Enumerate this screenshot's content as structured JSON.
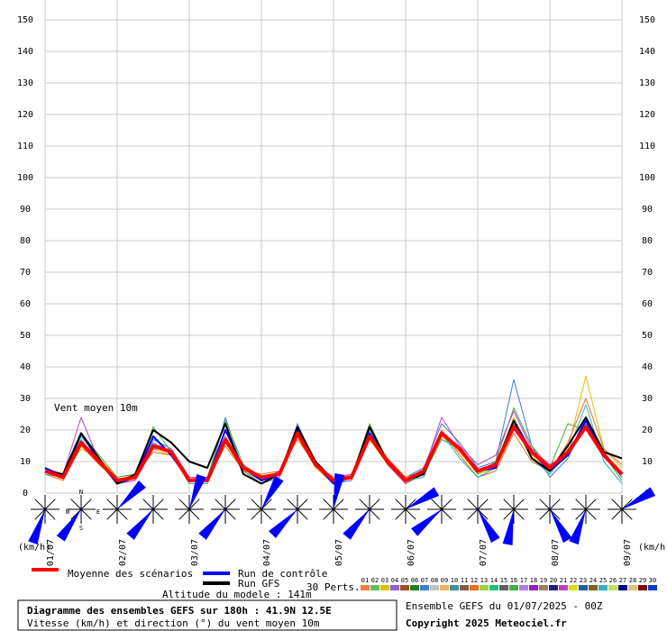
{
  "chart_data": {
    "type": "line",
    "title": "Diagramme des ensembles GEFS sur 180h : 41.9N 12.5E",
    "subtitle": "Vitesse (km/h) et direction (°) du vent moyen 10m",
    "annotation": "Vent moyen 10m",
    "y_unit": "(km/h)",
    "altitude": "Altitude du modele : 141m",
    "run_info": "Ensemble GEFS du 01/07/2025 - 00Z",
    "copyright": "Copyright 2025 Meteociel.fr",
    "perts_label": "30 Perts.",
    "compass": {
      "n": "N",
      "w": "W",
      "e": "E",
      "s": "S"
    },
    "categories": [
      "01/07",
      null,
      null,
      null,
      "02/07",
      null,
      null,
      null,
      "03/07",
      null,
      null,
      null,
      "04/07",
      null,
      null,
      null,
      "05/07",
      null,
      null,
      null,
      "06/07",
      null,
      null,
      null,
      "07/07",
      null,
      null,
      null,
      "08/07",
      null,
      null,
      null,
      "09/07"
    ],
    "ylim": [
      0,
      150
    ],
    "yticks": [
      0,
      10,
      20,
      30,
      40,
      50,
      60,
      70,
      80,
      90,
      100,
      110,
      120,
      130,
      140,
      150
    ],
    "grid": true,
    "series": [
      {
        "name": "Moyenne des scénarios",
        "color": "#ff0000",
        "values": [
          7,
          5,
          16,
          10,
          4,
          5,
          15,
          13,
          4,
          4,
          17,
          8,
          5,
          6,
          19,
          9,
          4,
          5,
          18,
          10,
          4,
          7,
          19,
          14,
          7,
          9,
          21,
          13,
          8,
          13,
          21,
          12,
          6
        ]
      },
      {
        "name": "Run de contrôle",
        "color": "#0000ff",
        "values": [
          8,
          5,
          19,
          10,
          3,
          5,
          18,
          12,
          4,
          4,
          20,
          8,
          4,
          6,
          20,
          9,
          3,
          5,
          19,
          10,
          4,
          6,
          19,
          14,
          7,
          8,
          23,
          13,
          7,
          12,
          23,
          12,
          6
        ]
      },
      {
        "name": "Run GFS",
        "color": "#000000",
        "values": [
          7,
          6,
          19,
          11,
          3,
          6,
          20,
          16,
          10,
          8,
          22,
          6,
          3,
          6,
          21,
          10,
          4,
          5,
          21,
          10,
          4,
          6,
          19,
          14,
          7,
          9,
          23,
          11,
          7,
          15,
          24,
          13,
          11
        ]
      }
    ],
    "perturbations": [
      {
        "member": 2,
        "values": [
          7,
          6,
          14,
          11,
          5,
          6,
          14,
          12,
          5,
          5,
          16,
          7,
          4,
          6,
          18,
          8,
          3,
          5,
          17,
          9,
          3,
          6,
          18,
          13,
          6,
          8,
          24,
          12,
          6,
          14,
          37,
          14,
          8
        ]
      },
      {
        "member": 6,
        "values": [
          8,
          5,
          18,
          11,
          3,
          4,
          17,
          14,
          3,
          3,
          24,
          7,
          3,
          5,
          22,
          9,
          3,
          4,
          20,
          10,
          5,
          8,
          22,
          16,
          8,
          10,
          36,
          15,
          5,
          11,
          22,
          12,
          5
        ]
      },
      {
        "member": 11,
        "values": [
          6,
          4,
          15,
          9,
          4,
          6,
          13,
          12,
          5,
          4,
          15,
          7,
          6,
          7,
          17,
          9,
          5,
          6,
          19,
          11,
          5,
          7,
          20,
          12,
          5,
          7,
          19,
          10,
          7,
          16,
          30,
          14,
          9
        ]
      },
      {
        "member": 15,
        "values": [
          7,
          5,
          19,
          12,
          5,
          6,
          21,
          13,
          4,
          5,
          23,
          9,
          5,
          6,
          21,
          10,
          3,
          5,
          22,
          10,
          3,
          6,
          17,
          14,
          6,
          10,
          27,
          15,
          8,
          22,
          20,
          12,
          4
        ]
      },
      {
        "member": 20,
        "values": [
          8,
          6,
          24,
          10,
          3,
          4,
          14,
          14,
          5,
          5,
          16,
          9,
          4,
          7,
          18,
          9,
          4,
          6,
          19,
          9,
          3,
          7,
          24,
          15,
          9,
          12,
          26,
          14,
          9,
          12,
          24,
          13,
          6
        ]
      },
      {
        "member": 24,
        "values": [
          6,
          5,
          17,
          10,
          4,
          5,
          16,
          13,
          3,
          3,
          18,
          8,
          4,
          6,
          20,
          9,
          4,
          5,
          21,
          10,
          4,
          5,
          19,
          11,
          5,
          8,
          22,
          11,
          6,
          13,
          28,
          10,
          3
        ]
      }
    ],
    "members": [
      {
        "label": "01",
        "color": "#f08040"
      },
      {
        "label": "02",
        "color": "#60c060"
      },
      {
        "label": "03",
        "color": "#e0c000"
      },
      {
        "label": "04",
        "color": "#9060d0"
      },
      {
        "label": "05",
        "color": "#a05020"
      },
      {
        "label": "06",
        "color": "#208020"
      },
      {
        "label": "07",
        "color": "#3a7fd0"
      },
      {
        "label": "08",
        "color": "#c0c0c0"
      },
      {
        "label": "09",
        "color": "#f0b060"
      },
      {
        "label": "10",
        "color": "#4090a0"
      },
      {
        "label": "11",
        "color": "#806040"
      },
      {
        "label": "12",
        "color": "#e87020"
      },
      {
        "label": "13",
        "color": "#a0d040"
      },
      {
        "label": "14",
        "color": "#20c080"
      },
      {
        "label": "15",
        "color": "#606060"
      },
      {
        "label": "16",
        "color": "#40b040"
      },
      {
        "label": "17",
        "color": "#b080e0"
      },
      {
        "label": "18",
        "color": "#9020c0"
      },
      {
        "label": "19",
        "color": "#a08060"
      },
      {
        "label": "20",
        "color": "#202080"
      },
      {
        "label": "21",
        "color": "#c040c0"
      },
      {
        "label": "22",
        "color": "#e0e000"
      },
      {
        "label": "23",
        "color": "#2060a0"
      },
      {
        "label": "24",
        "color": "#806020"
      },
      {
        "label": "25",
        "color": "#30b0c0"
      },
      {
        "label": "26",
        "color": "#c0e060"
      },
      {
        "label": "27",
        "color": "#000080"
      },
      {
        "label": "28",
        "color": "#e0c080"
      },
      {
        "label": "29",
        "color": "#800000"
      },
      {
        "label": "30",
        "color": "#0040c0"
      }
    ],
    "wind_directions": [
      200,
      215,
      45,
      220,
      20,
      220,
      30,
      225,
      10,
      220,
      60,
      230,
      150,
      190,
      150,
      200,
      60
    ]
  }
}
